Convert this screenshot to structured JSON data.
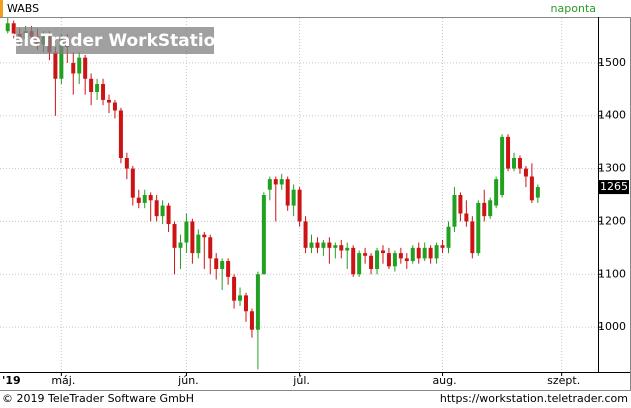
{
  "chart_data": {
    "type": "candlestick",
    "title": "WABS",
    "period": "naponta",
    "watermark": "TeleTrader WorkStation",
    "year_label": "'19",
    "copyright": "© 2019 TeleTrader Software GmbH",
    "url": "https://workstation.teletrader.com",
    "up_color": "#22a022",
    "down_color": "#cc1414",
    "grid": true,
    "ylim": [
      915,
      1585
    ],
    "yticks": [
      1000,
      1100,
      1200,
      1300,
      1400,
      1500
    ],
    "xlim": [
      -1.3,
      99.1
    ],
    "xticks": [
      {
        "value": 9,
        "label": "máj."
      },
      {
        "value": 30,
        "label": "jún."
      },
      {
        "value": 49,
        "label": "júl."
      },
      {
        "value": 73,
        "label": "aug."
      },
      {
        "value": 93,
        "label": "szept."
      }
    ],
    "open": [
      1560,
      1575,
      1555,
      1545,
      1560,
      1550,
      1535,
      1550,
      1520,
      1470,
      1545,
      1500,
      1480,
      1510,
      1470,
      1445,
      1460,
      1430,
      1425,
      1410,
      1320,
      1300,
      1245,
      1235,
      1250,
      1240,
      1210,
      1230,
      1195,
      1150,
      1160,
      1200,
      1140,
      1175,
      1170,
      1130,
      1110,
      1125,
      1095,
      1050,
      1060,
      1030,
      995,
      1100,
      1260,
      1280,
      1270,
      1280,
      1230,
      1260,
      1200,
      1150,
      1160,
      1150,
      1160,
      1150,
      1155,
      1145,
      1150,
      1100,
      1140,
      1135,
      1110,
      1145,
      1140,
      1115,
      1140,
      1130,
      1125,
      1150,
      1130,
      1150,
      1130,
      1155,
      1150,
      1190,
      1250,
      1215,
      1200,
      1140,
      1235,
      1210,
      1230,
      1250,
      1360,
      1300,
      1320,
      1300,
      1285,
      1245
    ],
    "high": [
      1585,
      1580,
      1565,
      1570,
      1570,
      1565,
      1560,
      1560,
      1530,
      1555,
      1555,
      1520,
      1520,
      1515,
      1480,
      1470,
      1470,
      1440,
      1430,
      1415,
      1330,
      1305,
      1260,
      1260,
      1255,
      1250,
      1240,
      1235,
      1200,
      1175,
      1215,
      1205,
      1185,
      1180,
      1175,
      1140,
      1130,
      1130,
      1100,
      1075,
      1065,
      1035,
      1105,
      1255,
      1285,
      1285,
      1290,
      1285,
      1270,
      1265,
      1210,
      1175,
      1170,
      1165,
      1170,
      1160,
      1165,
      1160,
      1155,
      1145,
      1150,
      1140,
      1150,
      1155,
      1150,
      1145,
      1150,
      1140,
      1155,
      1160,
      1160,
      1155,
      1160,
      1165,
      1200,
      1265,
      1255,
      1240,
      1210,
      1240,
      1260,
      1245,
      1285,
      1365,
      1365,
      1330,
      1325,
      1305,
      1310,
      1270
    ],
    "low": [
      1550,
      1545,
      1530,
      1535,
      1535,
      1525,
      1520,
      1505,
      1400,
      1460,
      1500,
      1440,
      1460,
      1440,
      1420,
      1430,
      1420,
      1405,
      1395,
      1310,
      1280,
      1230,
      1225,
      1225,
      1200,
      1200,
      1195,
      1180,
      1100,
      1110,
      1140,
      1120,
      1130,
      1110,
      1100,
      1090,
      1070,
      1080,
      1035,
      1040,
      1010,
      980,
      920,
      1100,
      1240,
      1200,
      1260,
      1220,
      1210,
      1190,
      1140,
      1140,
      1140,
      1135,
      1120,
      1130,
      1130,
      1110,
      1095,
      1095,
      1120,
      1100,
      1100,
      1120,
      1110,
      1105,
      1120,
      1110,
      1120,
      1120,
      1125,
      1120,
      1120,
      1140,
      1140,
      1180,
      1200,
      1190,
      1130,
      1135,
      1200,
      1205,
      1225,
      1245,
      1295,
      1295,
      1290,
      1265,
      1235,
      1235
    ],
    "close": [
      1575,
      1555,
      1545,
      1560,
      1550,
      1535,
      1550,
      1520,
      1470,
      1545,
      1530,
      1480,
      1510,
      1470,
      1445,
      1460,
      1430,
      1425,
      1410,
      1320,
      1300,
      1245,
      1235,
      1250,
      1240,
      1210,
      1230,
      1195,
      1150,
      1160,
      1200,
      1140,
      1175,
      1170,
      1130,
      1110,
      1125,
      1095,
      1050,
      1060,
      1030,
      995,
      1100,
      1250,
      1280,
      1270,
      1280,
      1230,
      1260,
      1200,
      1150,
      1160,
      1150,
      1160,
      1150,
      1155,
      1145,
      1150,
      1100,
      1140,
      1135,
      1110,
      1145,
      1140,
      1115,
      1140,
      1130,
      1125,
      1150,
      1130,
      1150,
      1130,
      1155,
      1150,
      1190,
      1250,
      1215,
      1200,
      1140,
      1235,
      1210,
      1240,
      1280,
      1360,
      1300,
      1320,
      1300,
      1285,
      1240,
      1265
    ]
  }
}
